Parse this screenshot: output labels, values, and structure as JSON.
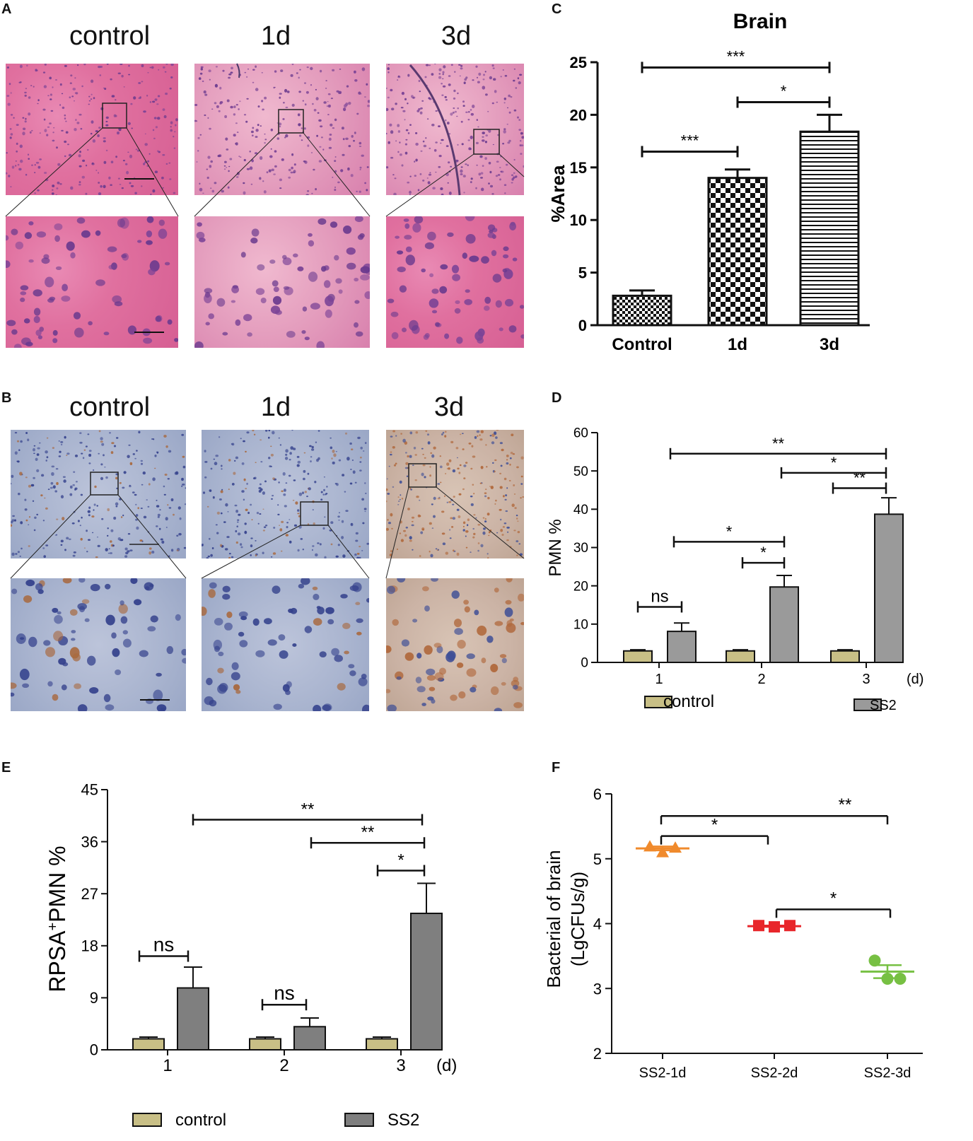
{
  "panels": {
    "A": {
      "letter": "A",
      "col_labels": [
        "control",
        "1d",
        "3d"
      ]
    },
    "B": {
      "letter": "B",
      "col_labels": [
        "control",
        "1d",
        "3d"
      ]
    },
    "C": {
      "letter": "C"
    },
    "D": {
      "letter": "D"
    },
    "E": {
      "letter": "E"
    },
    "F": {
      "letter": "F"
    }
  },
  "colors": {
    "control_fill": "#c8bf86",
    "ss2_fill": "#9a9a9a",
    "ss2_fill_E": "#7f7f7f",
    "f_1d": "#f08a2c",
    "f_2d": "#e8262b",
    "f_3d": "#77c043"
  },
  "chart_data": [
    {
      "id": "C",
      "type": "bar",
      "title": "Brain",
      "ylabel": "%Area",
      "xlabel": "",
      "categories": [
        "Control",
        "1d",
        "3d"
      ],
      "values": [
        2.8,
        14.0,
        18.4
      ],
      "errors": [
        0.5,
        0.8,
        1.6
      ],
      "patterns": [
        "checker-fine",
        "checker-coarse",
        "horizontal-lines"
      ],
      "ylim": [
        0,
        25
      ],
      "yticks": [
        "0",
        "5",
        "10",
        "15",
        "20",
        "25"
      ],
      "significance": [
        {
          "from": 0,
          "to": 2,
          "label": "***",
          "y": 24.5
        },
        {
          "from": 1,
          "to": 2,
          "label": "*",
          "y": 21.2
        },
        {
          "from": 0,
          "to": 1,
          "label": "***",
          "y": 16.5
        }
      ]
    },
    {
      "id": "D",
      "type": "bar",
      "title": "",
      "ylabel": "PMN %",
      "xlabel": "",
      "x_unit": "(d)",
      "categories": [
        "1",
        "2",
        "3"
      ],
      "series": [
        {
          "name": "control",
          "values": [
            3.0,
            3.0,
            3.0
          ],
          "errors": [
            0.3,
            0.3,
            0.3
          ]
        },
        {
          "name": "SS2",
          "values": [
            8.1,
            19.7,
            38.7
          ],
          "errors": [
            2.2,
            3.0,
            4.3
          ]
        }
      ],
      "ylim": [
        0,
        60
      ],
      "yticks": [
        "0",
        "10",
        "20",
        "30",
        "40",
        "50",
        "60"
      ],
      "legend": [
        "control",
        "SS2"
      ],
      "legend_position": "bottom",
      "significance": [
        {
          "x1": "1-control",
          "x2": "1-SS2",
          "label": "ns",
          "y": 14.5
        },
        {
          "x1": "2-SS2",
          "x2": "2-SS2",
          "label": "*",
          "y": 26.0,
          "from_left": "2-control"
        },
        {
          "x1": "1-SS2",
          "x2": "2-SS2",
          "label": "*",
          "y": 31.5
        },
        {
          "x1": "3-control",
          "x2": "3-SS2",
          "label": "**",
          "y": 45.5
        },
        {
          "x1": "2-SS2",
          "x2": "3-SS2",
          "label": "*",
          "y": 49.5
        },
        {
          "x1": "1-SS2",
          "x2": "3-SS2",
          "label": "**",
          "y": 54.5
        }
      ]
    },
    {
      "id": "E",
      "type": "bar",
      "title": "",
      "ylabel": "RPSA",
      "ylabel_sup": "+",
      "ylabel_tail": "PMN %",
      "xlabel": "",
      "x_unit": "(d)",
      "categories": [
        "1",
        "2",
        "3"
      ],
      "series": [
        {
          "name": "control",
          "values": [
            1.9,
            1.9,
            1.9
          ],
          "errors": [
            0.3,
            0.3,
            0.3
          ]
        },
        {
          "name": "SS2",
          "values": [
            10.7,
            4.0,
            23.6
          ],
          "errors": [
            3.6,
            1.5,
            5.2
          ]
        }
      ],
      "ylim": [
        0,
        45
      ],
      "yticks": [
        "0",
        "9",
        "18",
        "27",
        "36",
        "45"
      ],
      "legend": [
        "control",
        "SS2"
      ],
      "legend_position": "bottom",
      "significance": [
        {
          "label": "ns",
          "y": 16.2
        },
        {
          "label": "ns",
          "y": 7.8
        },
        {
          "label": "*",
          "y": 31.0
        },
        {
          "label": "**",
          "y": 35.8
        },
        {
          "label": "**",
          "y": 39.8
        }
      ]
    },
    {
      "id": "F",
      "type": "scatter",
      "title": "",
      "ylabel": "Bacterial of brain",
      "ylabel2": "(LgCFUs/g)",
      "xlabel": "",
      "categories": [
        "SS2-1d",
        "SS2-2d",
        "SS2-3d"
      ],
      "series": [
        {
          "name": "SS2-1d",
          "marker": "triangle",
          "points": [
            5.19,
            5.1,
            5.17
          ],
          "mean": 5.16,
          "sem": 0.03
        },
        {
          "name": "SS2-2d",
          "marker": "square",
          "points": [
            3.97,
            3.95,
            3.97
          ],
          "mean": 3.96,
          "sem": 0.01
        },
        {
          "name": "SS2-3d",
          "marker": "circle",
          "points": [
            3.43,
            3.15,
            3.15
          ],
          "mean": 3.26,
          "sem": 0.1
        }
      ],
      "ylim": [
        2,
        6
      ],
      "yticks": [
        "2",
        "3",
        "4",
        "5",
        "6"
      ],
      "significance": [
        {
          "from": 0,
          "to": 1,
          "label": "*",
          "y": 5.35
        },
        {
          "from": 0,
          "to": 2,
          "label": "**",
          "y": 5.66
        },
        {
          "from": 1,
          "to": 2,
          "label": "*",
          "y": 4.22
        }
      ]
    }
  ]
}
